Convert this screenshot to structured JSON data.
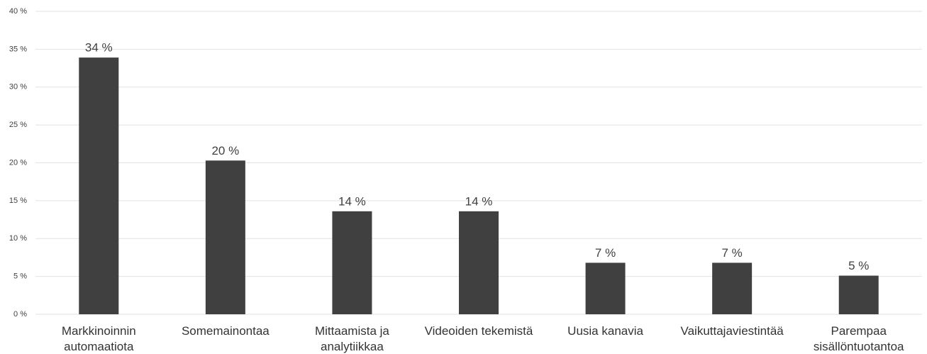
{
  "chart_data": {
    "type": "bar",
    "categories": [
      "Markkinoinnin automaatiota",
      "Somemainontaa",
      "Mittaamista ja analytiikkaa",
      "Videoiden tekemistä",
      "Uusia kanavia",
      "Vaikuttajaviestintää",
      "Parempaa sisällöntuotantoa"
    ],
    "values": [
      33.9,
      20.3,
      13.6,
      13.6,
      6.8,
      6.8,
      5.1
    ],
    "value_labels": [
      "34 %",
      "20 %",
      "14 %",
      "14 %",
      "7 %",
      "7 %",
      "5 %"
    ],
    "color": "#404040",
    "ylim": [
      0,
      40
    ],
    "yticks": [
      {
        "value": 0,
        "label": "0 %"
      },
      {
        "value": 5,
        "label": "5 %"
      },
      {
        "value": 10,
        "label": "10 %"
      },
      {
        "value": 15,
        "label": "15 %"
      },
      {
        "value": 20,
        "label": "20 %"
      },
      {
        "value": 25,
        "label": "25 %"
      },
      {
        "value": 30,
        "label": "30 %"
      },
      {
        "value": 35,
        "label": "35 %"
      },
      {
        "value": 40,
        "label": "40 %"
      }
    ],
    "grid": true
  }
}
